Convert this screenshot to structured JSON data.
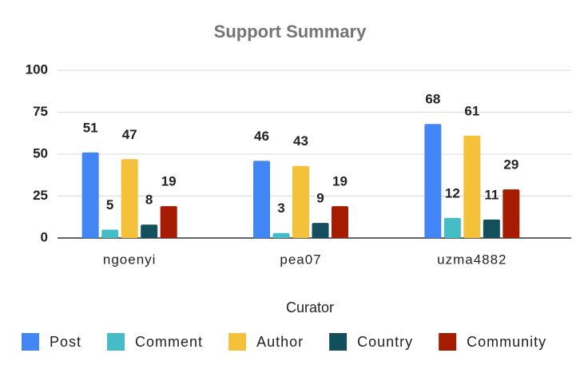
{
  "chart_data": {
    "type": "bar",
    "title": "Support Summary",
    "x_label": "Curator",
    "categories": [
      "ngoenyi",
      "pea07",
      "uzma4882"
    ],
    "series": [
      {
        "name": "Post",
        "color": "#4285f4",
        "values": [
          51,
          46,
          68
        ]
      },
      {
        "name": "Comment",
        "color": "#46bdc6",
        "values": [
          5,
          3,
          12
        ]
      },
      {
        "name": "Author",
        "color": "#f4c23a",
        "values": [
          47,
          43,
          61
        ]
      },
      {
        "name": "Country",
        "color": "#134f5c",
        "values": [
          8,
          9,
          11
        ]
      },
      {
        "name": "Community",
        "color": "#a61c00",
        "values": [
          19,
          19,
          29
        ]
      }
    ],
    "ylim": [
      0,
      100
    ],
    "yticks": [
      0,
      25,
      50,
      75,
      100
    ],
    "grid": true,
    "legend": "bottom"
  }
}
